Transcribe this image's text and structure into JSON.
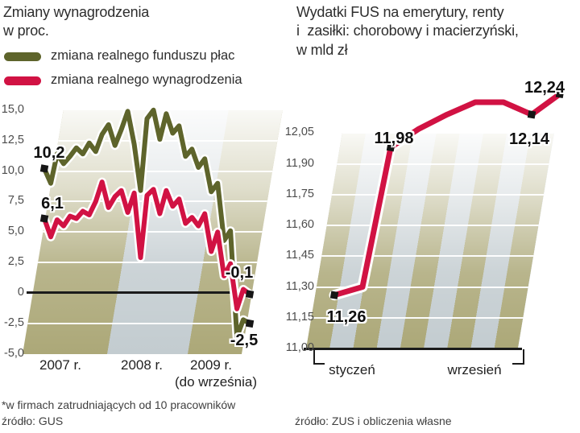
{
  "colors": {
    "line_olive": "#5e642b",
    "line_red": "#d11243",
    "stripe_khaki": "#aca878",
    "stripe_gray": "#c3ccd0",
    "axis_black": "#1b1b1b"
  },
  "chart_data": [
    {
      "type": "line",
      "title": "Zmiany wynagrodzenia w proc.",
      "title_lines": [
        "Zmiany wynagrodzenia",
        "w proc."
      ],
      "x_unit": "month",
      "x_start": "2007-01",
      "x_end": "2009-09",
      "x_axis_labels": [
        "2007 r.",
        "2008 r.",
        "2009 r.",
        "(do września)"
      ],
      "ylim": [
        -5,
        15
      ],
      "grid": true,
      "legend_position": "top",
      "y_ticks": [
        {
          "label": "15,0",
          "value": 15
        },
        {
          "label": "12,5",
          "value": 12.5
        },
        {
          "label": "10,0",
          "value": 10
        },
        {
          "label": "7,5",
          "value": 7.5
        },
        {
          "label": "5,0",
          "value": 5
        },
        {
          "label": "2,5",
          "value": 2.5
        },
        {
          "label": "0",
          "value": 0
        },
        {
          "label": "-2,5",
          "value": -2.5
        },
        {
          "label": "-5,0",
          "value": -5
        }
      ],
      "series": [
        {
          "name": "zmiana realnego funduszu płac",
          "color": "#5e642b",
          "values": [
            10.2,
            9.0,
            11.4,
            10.6,
            11.2,
            11.9,
            11.4,
            12.3,
            11.6,
            13.0,
            13.8,
            12.1,
            13.4,
            14.9,
            12.2,
            8.4,
            14.3,
            15.0,
            12.6,
            14.7,
            13.1,
            13.7,
            11.2,
            11.8,
            10.3,
            11.0,
            8.3,
            9.0,
            4.3,
            5.1,
            -3.6,
            -2.2,
            -2.5
          ]
        },
        {
          "name": "zmiana realnego wynagrodzenia",
          "color": "#d11243",
          "values": [
            6.1,
            4.6,
            6.0,
            5.5,
            6.3,
            6.1,
            6.7,
            6.4,
            7.5,
            9.1,
            7.0,
            7.9,
            8.4,
            6.6,
            8.2,
            2.9,
            8.0,
            8.5,
            6.5,
            8.4,
            7.1,
            7.7,
            5.7,
            6.2,
            5.5,
            6.5,
            3.4,
            5.0,
            1.4,
            2.4,
            -1.3,
            0.3,
            -0.1
          ]
        }
      ],
      "annotations": [
        {
          "text": "10,2",
          "series": 0,
          "index": 0
        },
        {
          "text": "6,1",
          "series": 1,
          "index": 0
        },
        {
          "text": "-0,1",
          "series": 1,
          "index": 32
        },
        {
          "text": "-2,5",
          "series": 0,
          "index": 32
        }
      ],
      "footnote": "*w firmach zatrudniających od 10 pracowników",
      "source": "źródło: GUS"
    },
    {
      "type": "line",
      "title": "Wydatki FUS na emerytury, renty i zasiłki: chorobowy i macierzyński, w mld zł",
      "title_lines": [
        "Wydatki FUS na emerytury, renty",
        "i  zasiłki: chorobowy i macierzyński,",
        "w mld zł"
      ],
      "x_unit": "month",
      "x_start": "2009-01",
      "x_end": "2009-09",
      "x_axis_labels": [
        "styczeń",
        "wrzesień"
      ],
      "ylim": [
        11.0,
        12.3
      ],
      "grid": true,
      "y_ticks": [
        {
          "label": "12,05",
          "value": 12.05
        },
        {
          "label": "11,90",
          "value": 11.9
        },
        {
          "label": "11,75",
          "value": 11.75
        },
        {
          "label": "11,60",
          "value": 11.6
        },
        {
          "label": "11,45",
          "value": 11.45
        },
        {
          "label": "11,30",
          "value": 11.3
        },
        {
          "label": "11,15",
          "value": 11.15
        },
        {
          "label": "11,00",
          "value": 11.0
        }
      ],
      "series": [
        {
          "name": "Wydatki FUS",
          "color": "#d11243",
          "values": [
            11.26,
            11.3,
            11.98,
            12.07,
            12.14,
            12.2,
            12.2,
            12.14,
            12.24
          ]
        }
      ],
      "annotations": [
        {
          "text": "11,26",
          "series": 0,
          "index": 0
        },
        {
          "text": "11,98",
          "series": 0,
          "index": 2
        },
        {
          "text": "12,14",
          "series": 0,
          "index": 7
        },
        {
          "text": "12,24",
          "series": 0,
          "index": 8
        }
      ],
      "source": "źródło: ZUS i obliczenia własne"
    }
  ]
}
